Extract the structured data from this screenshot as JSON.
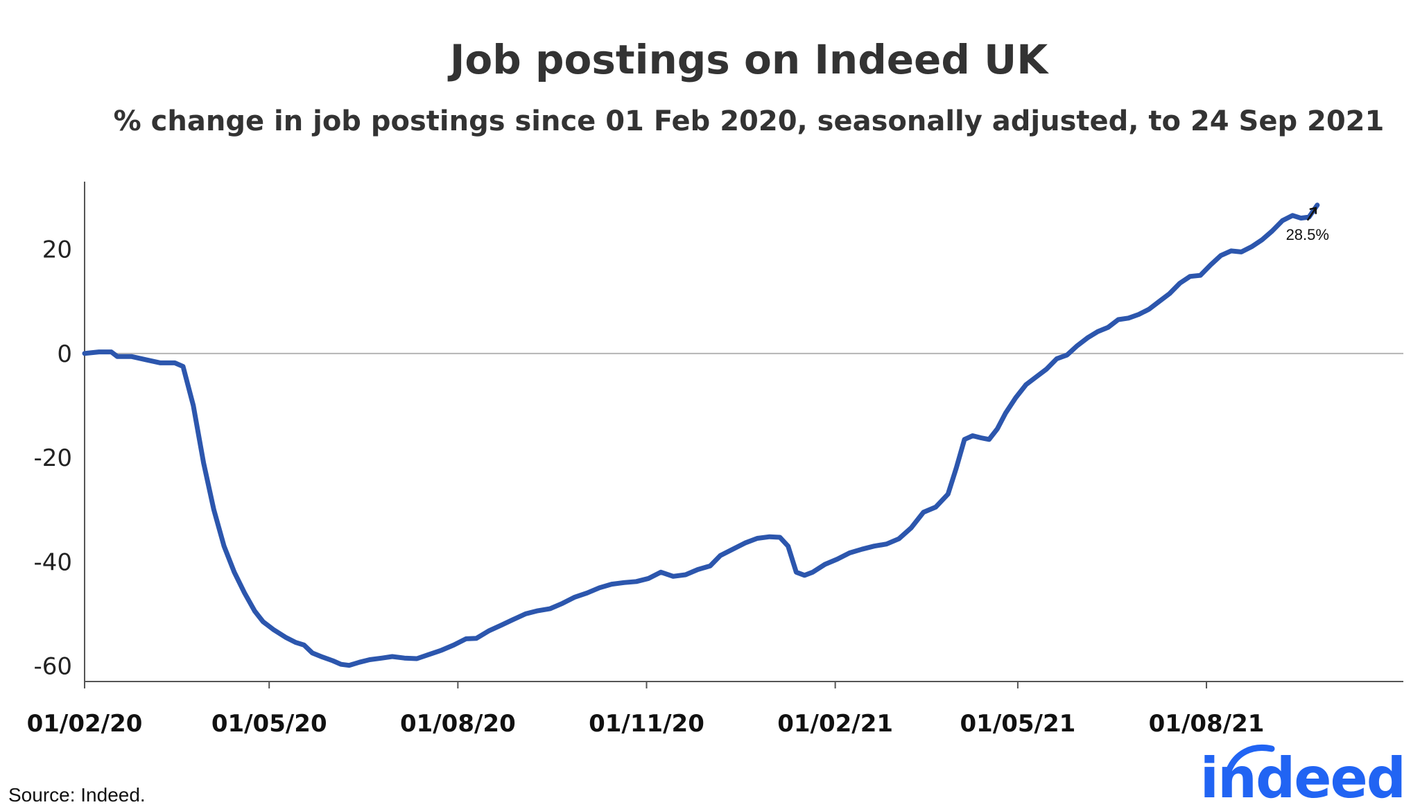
{
  "chart_data": {
    "type": "line",
    "title": "Job postings on Indeed UK",
    "subtitle": "% change in job postings since 01 Feb 2020, seasonally adjusted, to 24 Sep 2021",
    "xlabel": "",
    "ylabel": "",
    "ylim": [
      -63,
      33
    ],
    "xlim": [
      "2020-02-01",
      "2021-11-05"
    ],
    "y_ticks": [
      {
        "value": 20,
        "label": "20"
      },
      {
        "value": 0,
        "label": "0"
      },
      {
        "value": -20,
        "label": "-20"
      },
      {
        "value": -40,
        "label": "-40"
      },
      {
        "value": -60,
        "label": "-60"
      }
    ],
    "x_ticks": [
      {
        "date": "2020-02-01",
        "label": "01/02/20"
      },
      {
        "date": "2020-05-01",
        "label": "01/05/20"
      },
      {
        "date": "2020-08-01",
        "label": "01/08/20"
      },
      {
        "date": "2020-11-01",
        "label": "01/11/20"
      },
      {
        "date": "2021-02-01",
        "label": "01/02/21"
      },
      {
        "date": "2021-05-01",
        "label": "01/05/21"
      },
      {
        "date": "2021-08-01",
        "label": "01/08/21"
      }
    ],
    "grid": false,
    "zero_line": true,
    "series": [
      {
        "color": "#2c56ad",
        "points": [
          [
            "2020-02-01",
            0.0
          ],
          [
            "2020-02-08",
            0.3
          ],
          [
            "2020-02-14",
            0.3
          ],
          [
            "2020-02-17",
            -0.6
          ],
          [
            "2020-02-24",
            -0.6
          ],
          [
            "2020-03-02",
            -1.2
          ],
          [
            "2020-03-09",
            -1.8
          ],
          [
            "2020-03-16",
            -1.8
          ],
          [
            "2020-03-20",
            -2.5
          ],
          [
            "2020-03-25",
            -10.0
          ],
          [
            "2020-03-30",
            -21.0
          ],
          [
            "2020-04-04",
            -30.0
          ],
          [
            "2020-04-09",
            -37.0
          ],
          [
            "2020-04-14",
            -42.0
          ],
          [
            "2020-04-19",
            -46.0
          ],
          [
            "2020-04-24",
            -49.5
          ],
          [
            "2020-04-28",
            -51.5
          ],
          [
            "2020-05-03",
            -53.0
          ],
          [
            "2020-05-09",
            -54.5
          ],
          [
            "2020-05-14",
            -55.5
          ],
          [
            "2020-05-18",
            -56.0
          ],
          [
            "2020-05-22",
            -57.5
          ],
          [
            "2020-05-27",
            -58.3
          ],
          [
            "2020-06-01",
            -59.0
          ],
          [
            "2020-06-05",
            -59.7
          ],
          [
            "2020-06-09",
            -59.9
          ],
          [
            "2020-06-14",
            -59.3
          ],
          [
            "2020-06-19",
            -58.8
          ],
          [
            "2020-06-25",
            -58.5
          ],
          [
            "2020-06-30",
            -58.2
          ],
          [
            "2020-07-06",
            -58.5
          ],
          [
            "2020-07-12",
            -58.6
          ],
          [
            "2020-07-18",
            -57.8
          ],
          [
            "2020-07-24",
            -57.0
          ],
          [
            "2020-07-30",
            -56.0
          ],
          [
            "2020-08-05",
            -54.8
          ],
          [
            "2020-08-10",
            -54.7
          ],
          [
            "2020-08-16",
            -53.3
          ],
          [
            "2020-08-22",
            -52.2
          ],
          [
            "2020-08-28",
            -51.1
          ],
          [
            "2020-09-03",
            -50.0
          ],
          [
            "2020-09-09",
            -49.4
          ],
          [
            "2020-09-15",
            -49.0
          ],
          [
            "2020-09-21",
            -48.0
          ],
          [
            "2020-09-27",
            -46.8
          ],
          [
            "2020-10-03",
            -46.0
          ],
          [
            "2020-10-09",
            -45.0
          ],
          [
            "2020-10-15",
            -44.3
          ],
          [
            "2020-10-21",
            -44.0
          ],
          [
            "2020-10-27",
            -43.8
          ],
          [
            "2020-11-02",
            -43.2
          ],
          [
            "2020-11-08",
            -42.0
          ],
          [
            "2020-11-14",
            -42.8
          ],
          [
            "2020-11-20",
            -42.5
          ],
          [
            "2020-11-26",
            -41.5
          ],
          [
            "2020-12-02",
            -40.8
          ],
          [
            "2020-12-07",
            -38.8
          ],
          [
            "2020-12-13",
            -37.6
          ],
          [
            "2020-12-19",
            -36.4
          ],
          [
            "2020-12-25",
            -35.5
          ],
          [
            "2020-12-31",
            -35.2
          ],
          [
            "2021-01-05",
            -35.3
          ],
          [
            "2021-01-09",
            -37.0
          ],
          [
            "2021-01-13",
            -42.0
          ],
          [
            "2021-01-17",
            -42.6
          ],
          [
            "2021-01-21",
            -42.0
          ],
          [
            "2021-01-27",
            -40.5
          ],
          [
            "2021-02-02",
            -39.5
          ],
          [
            "2021-02-08",
            -38.3
          ],
          [
            "2021-02-14",
            -37.6
          ],
          [
            "2021-02-20",
            -37.0
          ],
          [
            "2021-02-26",
            -36.6
          ],
          [
            "2021-03-04",
            -35.6
          ],
          [
            "2021-03-10",
            -33.5
          ],
          [
            "2021-03-16",
            -30.5
          ],
          [
            "2021-03-22",
            -29.5
          ],
          [
            "2021-03-28",
            -27.0
          ],
          [
            "2021-04-01",
            -22.0
          ],
          [
            "2021-04-05",
            -16.5
          ],
          [
            "2021-04-09",
            -15.8
          ],
          [
            "2021-04-13",
            -16.2
          ],
          [
            "2021-04-17",
            -16.5
          ],
          [
            "2021-04-21",
            -14.5
          ],
          [
            "2021-04-25",
            -11.5
          ],
          [
            "2021-04-30",
            -8.5
          ],
          [
            "2021-05-05",
            -6.0
          ],
          [
            "2021-05-10",
            -4.5
          ],
          [
            "2021-05-15",
            -3.0
          ],
          [
            "2021-05-20",
            -1.0
          ],
          [
            "2021-05-25",
            -0.3
          ],
          [
            "2021-05-30",
            1.5
          ],
          [
            "2021-06-04",
            3.0
          ],
          [
            "2021-06-09",
            4.2
          ],
          [
            "2021-06-14",
            5.0
          ],
          [
            "2021-06-19",
            6.5
          ],
          [
            "2021-06-24",
            6.8
          ],
          [
            "2021-06-29",
            7.5
          ],
          [
            "2021-07-04",
            8.5
          ],
          [
            "2021-07-09",
            10.0
          ],
          [
            "2021-07-14",
            11.5
          ],
          [
            "2021-07-19",
            13.5
          ],
          [
            "2021-07-24",
            14.8
          ],
          [
            "2021-07-29",
            15.0
          ],
          [
            "2021-08-03",
            17.0
          ],
          [
            "2021-08-08",
            18.8
          ],
          [
            "2021-08-13",
            19.7
          ],
          [
            "2021-08-18",
            19.5
          ],
          [
            "2021-08-23",
            20.5
          ],
          [
            "2021-08-28",
            21.8
          ],
          [
            "2021-09-02",
            23.5
          ],
          [
            "2021-09-07",
            25.5
          ],
          [
            "2021-09-12",
            26.5
          ],
          [
            "2021-09-16",
            26.0
          ],
          [
            "2021-09-20",
            26.2
          ],
          [
            "2021-09-24",
            28.5
          ]
        ]
      }
    ],
    "annotations": [
      {
        "label": "28.5%",
        "date": "2021-09-24",
        "value": 28.5
      }
    ],
    "source": "Source: Indeed.",
    "logo": "indeed"
  }
}
